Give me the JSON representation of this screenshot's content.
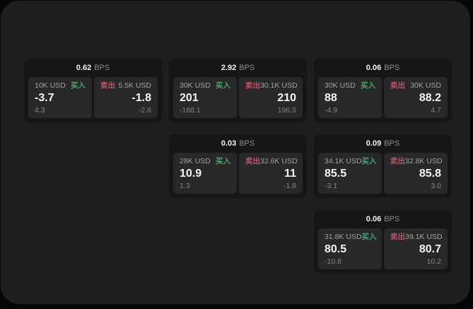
{
  "labels": {
    "bps_unit": "BPS",
    "buy": "买入",
    "sell": "卖出"
  },
  "colors": {
    "buy_green": "#4fa369",
    "sell_red": "#b85768",
    "frame_bg": "#1e1e20",
    "card_bg": "#161618",
    "pane_bg": "#28282a"
  },
  "cards": [
    {
      "bps": "0.62",
      "buy": {
        "amount": "10K USD",
        "price": "-3.7",
        "change": "4.3"
      },
      "sell": {
        "amount": "5.5K USD",
        "price": "-1.8",
        "change": "-2.6"
      }
    },
    {
      "bps": "2.92",
      "buy": {
        "amount": "30K USD",
        "price": "201",
        "change": "-188.1"
      },
      "sell": {
        "amount": "30.1K USD",
        "price": "210",
        "change": "196.5"
      }
    },
    {
      "bps": "0.06",
      "buy": {
        "amount": "30K USD",
        "price": "88",
        "change": "-4.9"
      },
      "sell": {
        "amount": "30K USD",
        "price": "88.2",
        "change": "4.7"
      }
    },
    {
      "bps": "0.03",
      "buy": {
        "amount": "28K USD",
        "price": "10.9",
        "change": "1.3"
      },
      "sell": {
        "amount": "32.6K USD",
        "price": "11",
        "change": "-1.8"
      }
    },
    {
      "bps": "0.09",
      "buy": {
        "amount": "34.1K USD",
        "price": "85.5",
        "change": "-3.1"
      },
      "sell": {
        "amount": "32.8K USD",
        "price": "85.8",
        "change": "3.0"
      }
    },
    {
      "bps": "0.06",
      "buy": {
        "amount": "31.8K USD",
        "price": "80.5",
        "change": "-10.8"
      },
      "sell": {
        "amount": "39.1K USD",
        "price": "80.7",
        "change": "10.2"
      }
    }
  ]
}
